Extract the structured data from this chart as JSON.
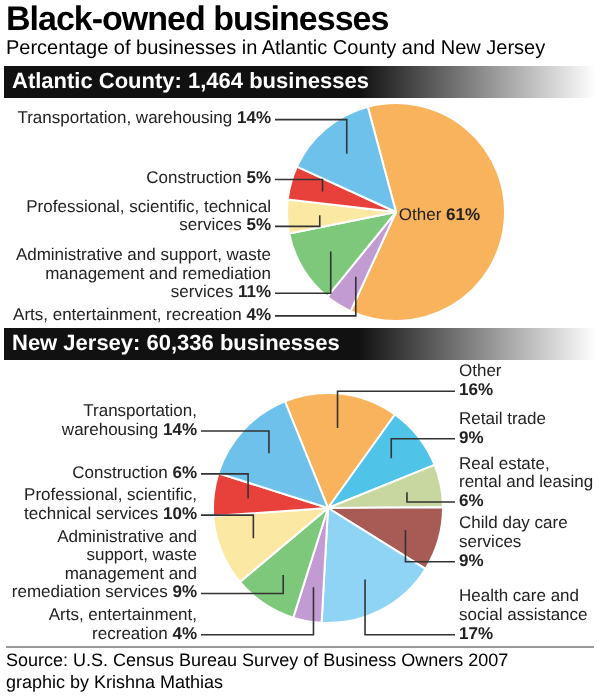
{
  "chart_data": [
    {
      "type": "pie",
      "title": "Black-owned businesses",
      "subtitle": "Percentage of businesses in Atlantic County and New Jersey",
      "annotations": [
        "Atlantic County: 1,464 businesses"
      ],
      "categories": [
        "Other",
        "Arts, entertainment, recreation",
        "Administrative and support, waste management and remediation services",
        "Professional, scientific, technical services",
        "Construction",
        "Transportation, warehousing"
      ],
      "values": [
        61,
        4,
        11,
        5,
        5,
        14
      ],
      "value_labels": [
        "61%",
        "4%",
        "11%",
        "5%",
        "5%",
        "14%"
      ],
      "colors": [
        "#f9b35c",
        "#c39bd3",
        "#7dc87a",
        "#fbe9a3",
        "#e8413c",
        "#6ec1ea"
      ]
    },
    {
      "type": "pie",
      "title": "New Jersey: 60,336 businesses",
      "annotations": [
        "Source: U.S. Census Bureau Survey of Business Owners 2007",
        "graphic by Krishna Mathias"
      ],
      "categories": [
        "Other",
        "Retail trade",
        "Real estate, rental and leasing",
        "Child day care services",
        "Health care and social assistance",
        "Arts, entertainment, recreation",
        "Administrative and support, waste management and remediation services",
        "Professional, scientific, technical services",
        "Construction",
        "Transportation, warehousing"
      ],
      "values": [
        16,
        9,
        6,
        9,
        17,
        4,
        9,
        10,
        6,
        14
      ],
      "value_labels": [
        "16%",
        "9%",
        "6%",
        "9%",
        "17%",
        "4%",
        "9%",
        "10%",
        "6%",
        "14%"
      ],
      "colors": [
        "#f9b35c",
        "#4fc3e8",
        "#c8d6a0",
        "#a85a55",
        "#8fd3f5",
        "#c39bd3",
        "#7dc87a",
        "#fbe9a3",
        "#e8413c",
        "#6ec1ea"
      ]
    }
  ]
}
